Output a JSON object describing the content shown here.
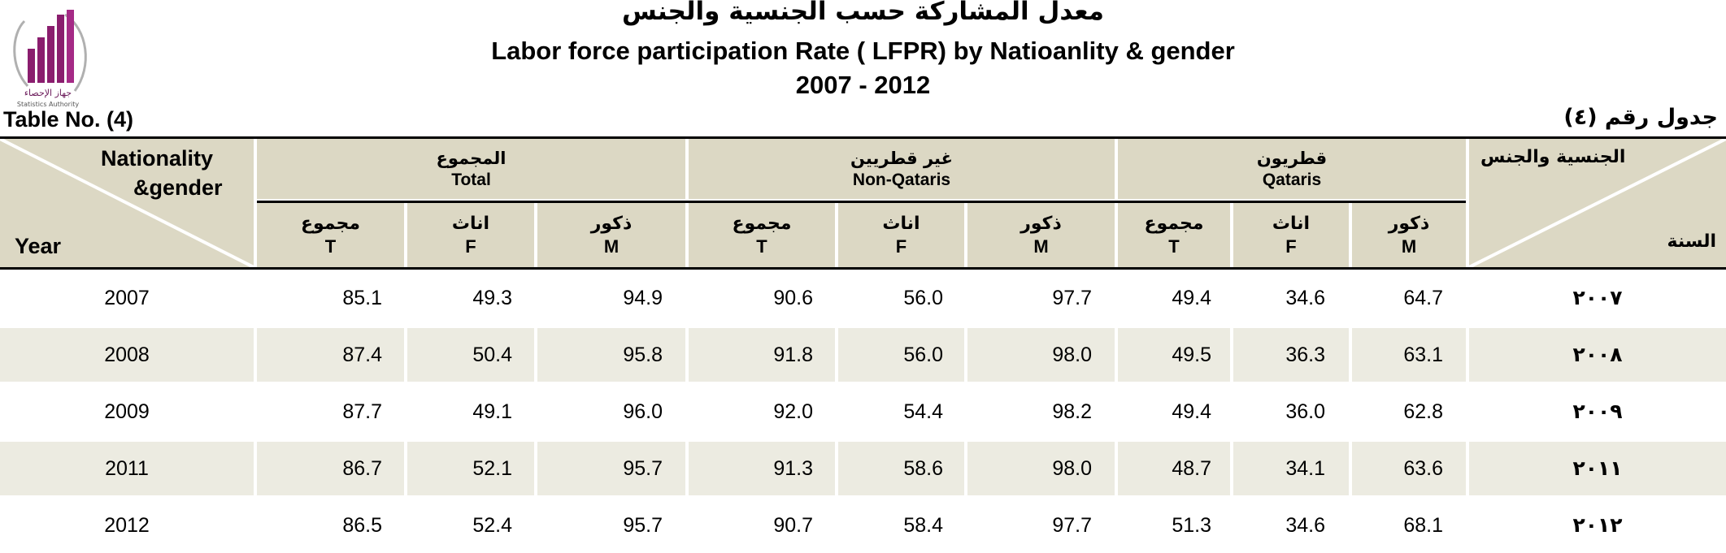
{
  "logo": {
    "name_ar": "جهاز الإحصاء",
    "name_en": "Statistics Authority"
  },
  "title": {
    "arabic": "معدل المشاركة حسب الجنسية والجنس",
    "english": "Labor force participation Rate ( LFPR)  by Natioanlity & gender",
    "years": "2007 - 2012"
  },
  "table_no": {
    "en": "Table No. (4)",
    "ar": "جدول رقم (٤)"
  },
  "header": {
    "left_corner": {
      "line1": "Nationality",
      "line2": "&gender",
      "year": "Year"
    },
    "right_corner": {
      "top": "الجنسية والجنس",
      "bottom": "السنة"
    },
    "groups": [
      {
        "ar": "المجموع",
        "en": "Total"
      },
      {
        "ar": "غير قطريين",
        "en": "Non-Qataris"
      },
      {
        "ar": "قطريون",
        "en": "Qataris"
      }
    ],
    "sub": [
      {
        "ar": "مجموع",
        "en": "T"
      },
      {
        "ar": "اناث",
        "en": "F"
      },
      {
        "ar": "ذكور",
        "en": "M"
      }
    ]
  },
  "rows": [
    {
      "year": "2007",
      "year_ar": "٢٠٠٧",
      "values": [
        "85.1",
        "49.3",
        "94.9",
        "90.6",
        "56.0",
        "97.7",
        "49.4",
        "34.6",
        "64.7"
      ]
    },
    {
      "year": "2008",
      "year_ar": "٢٠٠٨",
      "values": [
        "87.4",
        "50.4",
        "95.8",
        "91.8",
        "56.0",
        "98.0",
        "49.5",
        "36.3",
        "63.1"
      ]
    },
    {
      "year": "2009",
      "year_ar": "٢٠٠٩",
      "values": [
        "87.7",
        "49.1",
        "96.0",
        "92.0",
        "54.4",
        "98.2",
        "49.4",
        "36.0",
        "62.8"
      ]
    },
    {
      "year": "2011",
      "year_ar": "٢٠١١",
      "values": [
        "86.7",
        "52.1",
        "95.7",
        "91.3",
        "58.6",
        "98.0",
        "48.7",
        "34.1",
        "63.6"
      ]
    },
    {
      "year": "2012",
      "year_ar": "٢٠١٢",
      "values": [
        "86.5",
        "52.4",
        "95.7",
        "90.7",
        "58.4",
        "97.7",
        "51.3",
        "34.6",
        "68.1"
      ]
    }
  ],
  "colors": {
    "header_bg": "#dcd8c4",
    "alt_row_bg": "#ecebe1",
    "logo": "#8a1d6e"
  }
}
